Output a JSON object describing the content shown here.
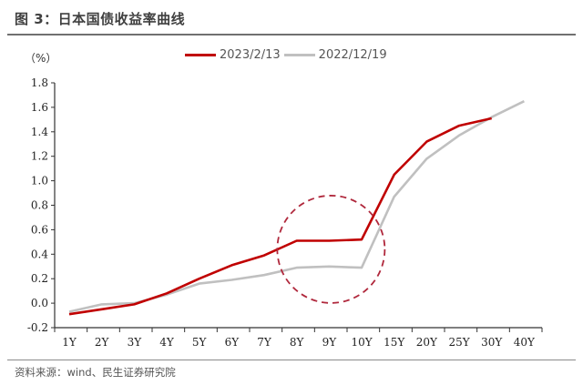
{
  "figure": {
    "title": "图 3：日本国债收益率曲线",
    "source": "资料来源：wind、民生证券研究院",
    "unit_label": "（%）"
  },
  "colors": {
    "series_2023": "#c00000",
    "series_2022": "#c0c0c0",
    "highlight_circle": "#b0283c",
    "axis": "#333333"
  },
  "chart_data": {
    "type": "line",
    "title": "日本国债收益率曲线",
    "xlabel": "",
    "ylabel": "（%）",
    "ylim": [
      -0.2,
      1.8
    ],
    "yticks": [
      -0.2,
      0.0,
      0.2,
      0.4,
      0.6,
      0.8,
      1.0,
      1.2,
      1.4,
      1.6,
      1.8
    ],
    "ytick_labels": [
      "-0.2",
      "0.0",
      "0.2",
      "0.4",
      "0.6",
      "0.8",
      "1.0",
      "1.2",
      "1.4",
      "1.6",
      "1.8"
    ],
    "categories": [
      "1Y",
      "2Y",
      "3Y",
      "4Y",
      "5Y",
      "6Y",
      "7Y",
      "8Y",
      "9Y",
      "10Y",
      "15Y",
      "20Y",
      "25Y",
      "30Y",
      "40Y"
    ],
    "series": [
      {
        "name": "2023/2/13",
        "color": "#c00000",
        "values": [
          -0.09,
          -0.05,
          -0.01,
          0.08,
          0.2,
          0.31,
          0.39,
          0.51,
          0.51,
          0.52,
          1.05,
          1.32,
          1.45,
          1.51,
          null
        ]
      },
      {
        "name": "2022/12/19",
        "color": "#c0c0c0",
        "values": [
          -0.07,
          -0.01,
          0.0,
          0.07,
          0.16,
          0.19,
          0.23,
          0.29,
          0.3,
          0.29,
          0.87,
          1.18,
          1.37,
          1.52,
          1.65
        ]
      }
    ],
    "legend_position": "top",
    "grid": false,
    "annotations": [
      {
        "type": "dashed-circle",
        "around_categories": [
          "8Y",
          "9Y",
          "10Y"
        ],
        "y_center": 0.44,
        "description": "highlight of 8Y-10Y segment"
      }
    ]
  }
}
